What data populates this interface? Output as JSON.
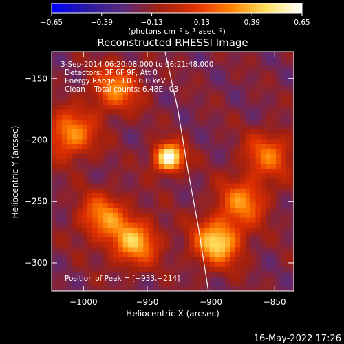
{
  "chart_data": {
    "type": "heatmap",
    "title": "Reconstructed RHESSI Image",
    "xlabel": "Heliocentric X (arcsec)",
    "ylabel": "Heliocentric Y (arcsec)",
    "xlim": [
      -1025,
      -835
    ],
    "ylim": [
      -323,
      -128
    ],
    "xticks": [
      {
        "value": -1000,
        "label": "−1000"
      },
      {
        "value": -950,
        "label": "−950"
      },
      {
        "value": -900,
        "label": "−900"
      },
      {
        "value": -850,
        "label": "−850"
      }
    ],
    "yticks": [
      {
        "value": -150,
        "label": "−150"
      },
      {
        "value": -200,
        "label": "−200"
      },
      {
        "value": -250,
        "label": "−250"
      },
      {
        "value": -300,
        "label": "−300"
      }
    ],
    "colorbar": {
      "min": -0.65,
      "max": 0.65,
      "tick_values": [
        -0.65,
        -0.39,
        -0.13,
        0.13,
        0.39,
        0.65
      ],
      "tick_labels": [
        "−0.65",
        "−0.39",
        "−0.13",
        "0.13",
        "0.39",
        "0.65"
      ],
      "unit_label": "(photons cm⁻² s⁻¹ asec⁻²)",
      "colors": [
        "#0000ff",
        "#2a1aa0",
        "#5a2a7a",
        "#a02010",
        "#e03000",
        "#ff8000",
        "#ffe060",
        "#ffffff"
      ]
    },
    "annotations": [
      "3-Sep-2014 06:20:08.000 to 06:21:48.000",
      "Detectors: 3F 6F 9F, Att 0",
      "Energy Range: 3.0 - 6.0 keV",
      "Clean    Total counts: 6.48E+03"
    ],
    "peak_label": "Position of Peak = [−933,−214]",
    "peak": {
      "x": -933,
      "y": -214,
      "value": 0.65
    },
    "sources": [
      {
        "x": -933,
        "y": -214,
        "value": 0.65
      },
      {
        "x": -895,
        "y": -283,
        "value": 0.45
      },
      {
        "x": -960,
        "y": -283,
        "value": 0.35
      },
      {
        "x": -985,
        "y": -262,
        "value": 0.25
      },
      {
        "x": -1010,
        "y": -195,
        "value": 0.3
      },
      {
        "x": -975,
        "y": -158,
        "value": 0.25
      },
      {
        "x": -875,
        "y": -250,
        "value": 0.25
      },
      {
        "x": -855,
        "y": -212,
        "value": 0.2
      }
    ],
    "limb_curve": [
      {
        "x": -936,
        "y": -128
      },
      {
        "x": -926,
        "y": -175
      },
      {
        "x": -918,
        "y": -225
      },
      {
        "x": -910,
        "y": -270
      },
      {
        "x": -902,
        "y": -323
      }
    ]
  },
  "footer": {
    "timestamp": "16-May-2022 17:26"
  }
}
